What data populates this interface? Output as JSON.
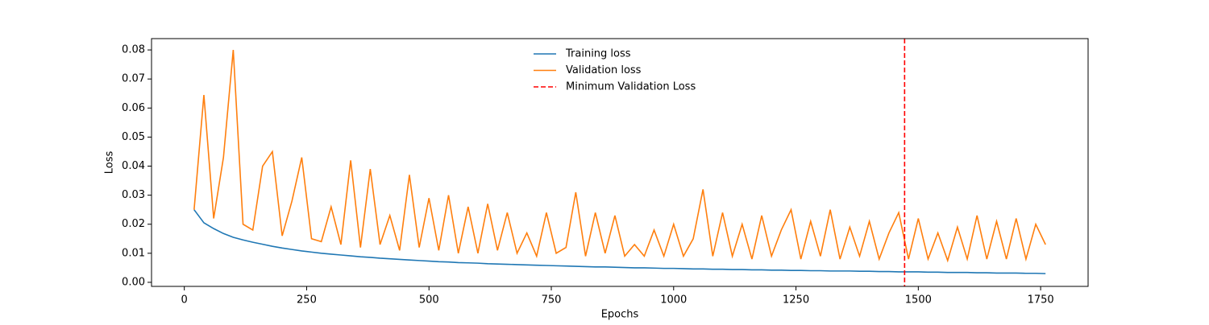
{
  "chart_data": {
    "type": "line",
    "xlabel": "Epochs",
    "ylabel": "Loss",
    "x": [
      20,
      40,
      60,
      80,
      100,
      120,
      140,
      160,
      180,
      200,
      220,
      240,
      260,
      280,
      300,
      320,
      340,
      360,
      380,
      400,
      420,
      440,
      460,
      480,
      500,
      520,
      540,
      560,
      580,
      600,
      620,
      640,
      660,
      680,
      700,
      720,
      740,
      760,
      780,
      800,
      820,
      840,
      860,
      880,
      900,
      920,
      940,
      960,
      980,
      1000,
      1020,
      1040,
      1060,
      1080,
      1100,
      1120,
      1140,
      1160,
      1180,
      1200,
      1220,
      1240,
      1260,
      1280,
      1300,
      1320,
      1340,
      1360,
      1380,
      1400,
      1420,
      1440,
      1460,
      1480,
      1500,
      1520,
      1540,
      1560,
      1580,
      1600,
      1620,
      1640,
      1660,
      1680,
      1700,
      1720,
      1740,
      1760
    ],
    "series": [
      {
        "name": "Training loss",
        "color": "#1f77b4",
        "values": [
          0.025,
          0.0205,
          0.0185,
          0.0168,
          0.0155,
          0.0146,
          0.0138,
          0.0131,
          0.0124,
          0.0118,
          0.0113,
          0.0108,
          0.0104,
          0.01,
          0.0097,
          0.0094,
          0.0091,
          0.0088,
          0.0086,
          0.0083,
          0.0081,
          0.0079,
          0.0077,
          0.0075,
          0.0073,
          0.0071,
          0.007,
          0.0068,
          0.0067,
          0.0066,
          0.0064,
          0.0063,
          0.0062,
          0.0061,
          0.006,
          0.0059,
          0.0058,
          0.0057,
          0.0056,
          0.0055,
          0.0054,
          0.0053,
          0.0053,
          0.0052,
          0.0051,
          0.005,
          0.005,
          0.0049,
          0.0048,
          0.0048,
          0.0047,
          0.0046,
          0.0046,
          0.0045,
          0.0045,
          0.0044,
          0.0044,
          0.0043,
          0.0043,
          0.0042,
          0.0042,
          0.0041,
          0.0041,
          0.004,
          0.004,
          0.0039,
          0.0039,
          0.0039,
          0.0038,
          0.0038,
          0.0037,
          0.0037,
          0.0036,
          0.0036,
          0.0036,
          0.0035,
          0.0035,
          0.0034,
          0.0034,
          0.0034,
          0.0033,
          0.0033,
          0.0032,
          0.0032,
          0.0032,
          0.0031,
          0.0031,
          0.003
        ]
      },
      {
        "name": "Validation loss",
        "color": "#ff7f0e",
        "values": [
          0.025,
          0.0645,
          0.022,
          0.043,
          0.08,
          0.02,
          0.018,
          0.04,
          0.045,
          0.016,
          0.028,
          0.043,
          0.015,
          0.014,
          0.026,
          0.013,
          0.042,
          0.012,
          0.039,
          0.013,
          0.023,
          0.011,
          0.037,
          0.012,
          0.029,
          0.011,
          0.03,
          0.01,
          0.026,
          0.01,
          0.027,
          0.011,
          0.024,
          0.01,
          0.017,
          0.009,
          0.024,
          0.01,
          0.012,
          0.031,
          0.009,
          0.024,
          0.01,
          0.023,
          0.009,
          0.013,
          0.009,
          0.018,
          0.009,
          0.02,
          0.009,
          0.015,
          0.032,
          0.009,
          0.024,
          0.009,
          0.02,
          0.008,
          0.023,
          0.009,
          0.018,
          0.025,
          0.008,
          0.021,
          0.009,
          0.025,
          0.008,
          0.019,
          0.009,
          0.021,
          0.008,
          0.017,
          0.024,
          0.008,
          0.022,
          0.008,
          0.017,
          0.0075,
          0.019,
          0.008,
          0.023,
          0.008,
          0.021,
          0.008,
          0.022,
          0.008,
          0.02,
          0.013
        ]
      }
    ],
    "vline": {
      "name": "Minimum Validation Loss",
      "x": 1472,
      "color": "#ff0000"
    },
    "xlim": [
      -67,
      1847
    ],
    "ylim": [
      -0.0014,
      0.0839
    ],
    "xticks": [
      0,
      250,
      500,
      750,
      1000,
      1250,
      1500,
      1750
    ],
    "yticks": [
      {
        "value": 0,
        "label": "0.00"
      },
      0.01,
      0.02,
      0.03,
      0.04,
      0.05,
      0.06,
      0.07,
      0.08
    ],
    "legend": "upper center"
  }
}
